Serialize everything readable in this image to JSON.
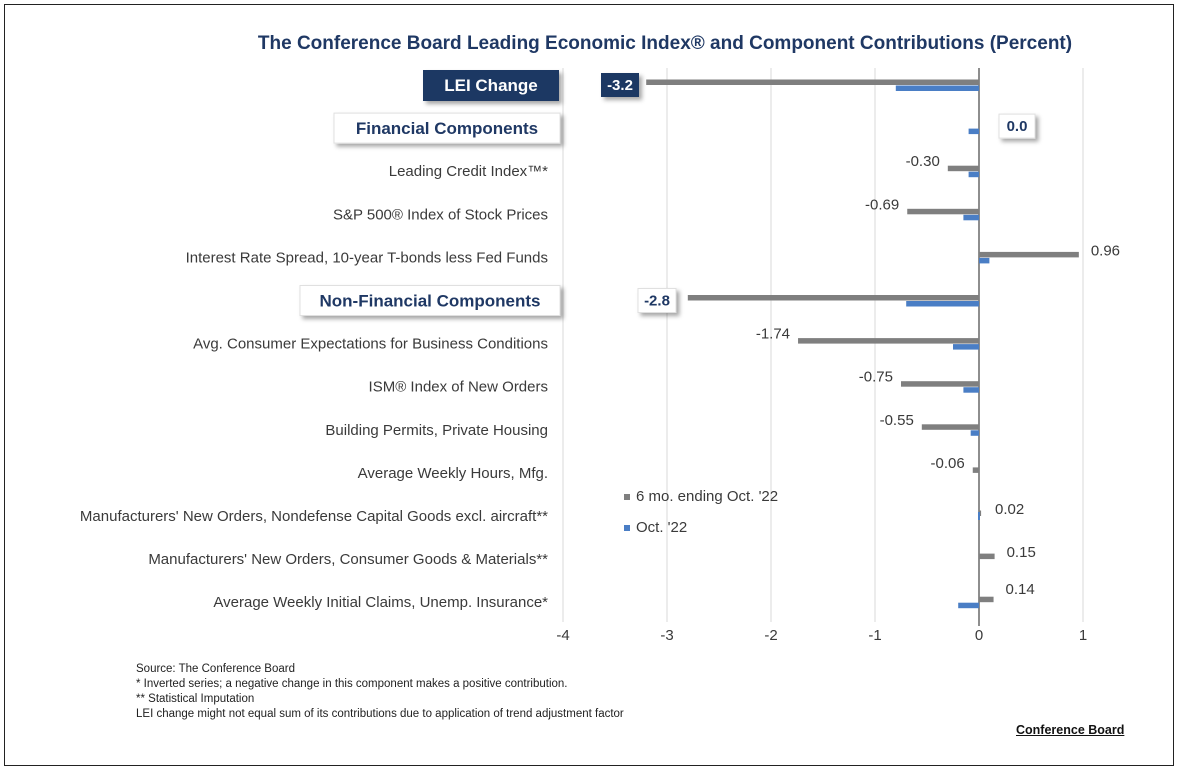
{
  "title": "The Conference Board Leading Economic Index® and Component Contributions (Percent)",
  "chart_data": {
    "type": "bar",
    "orientation": "horizontal",
    "xlim": [
      -4,
      1
    ],
    "xticks": [
      -4,
      -3,
      -2,
      -1,
      0,
      1
    ],
    "categories": [
      "LEI Change",
      "Financial Components",
      "Leading Credit Index™*",
      "S&P 500® Index of Stock Prices",
      "Interest Rate Spread, 10-year T-bonds less Fed Funds",
      "Non-Financial Components",
      "Avg. Consumer Expectations for Business Conditions",
      "ISM® Index of New Orders",
      "Building Permits, Private Housing",
      "Average Weekly Hours, Mfg.",
      "Manufacturers' New Orders, Nondefense Capital Goods excl. aircraft**",
      "Manufacturers' New Orders, Consumer Goods & Materials**",
      "Average Weekly Initial Claims, Unemp. Insurance*"
    ],
    "header_rows": [
      0,
      1,
      5
    ],
    "series": [
      {
        "name": "6 mo. ending Oct. '22",
        "color": "#7f7f7f",
        "values": [
          -3.2,
          0.0,
          -0.3,
          -0.69,
          0.96,
          -2.8,
          -1.74,
          -0.75,
          -0.55,
          -0.06,
          0.02,
          0.15,
          0.14
        ]
      },
      {
        "name": "Oct. '22",
        "color": "#4a7ec5",
        "values": [
          -0.8,
          -0.1,
          -0.1,
          -0.15,
          0.1,
          -0.7,
          -0.25,
          -0.15,
          -0.08,
          0.0,
          0.0,
          0.0,
          -0.2
        ]
      }
    ],
    "value_labels": [
      "-3.2",
      "0.0",
      "-0.30",
      "-0.69",
      "0.96",
      "-2.8",
      "-1.74",
      "-0.75",
      "-0.55",
      "-0.06",
      "0.02",
      "0.15",
      "0.14"
    ],
    "badge_rows": [
      0,
      1,
      5
    ],
    "legend": [
      "6 mo. ending Oct. '22",
      "Oct. '22"
    ],
    "grid": true
  },
  "notes": [
    "Source: The Conference Board",
    "*  Inverted series; a negative change in this component makes a positive contribution.",
    "**  Statistical Imputation",
    "LEI change might not equal sum of its contributions due to application of trend adjustment factor"
  ],
  "brand": "Conference Board"
}
